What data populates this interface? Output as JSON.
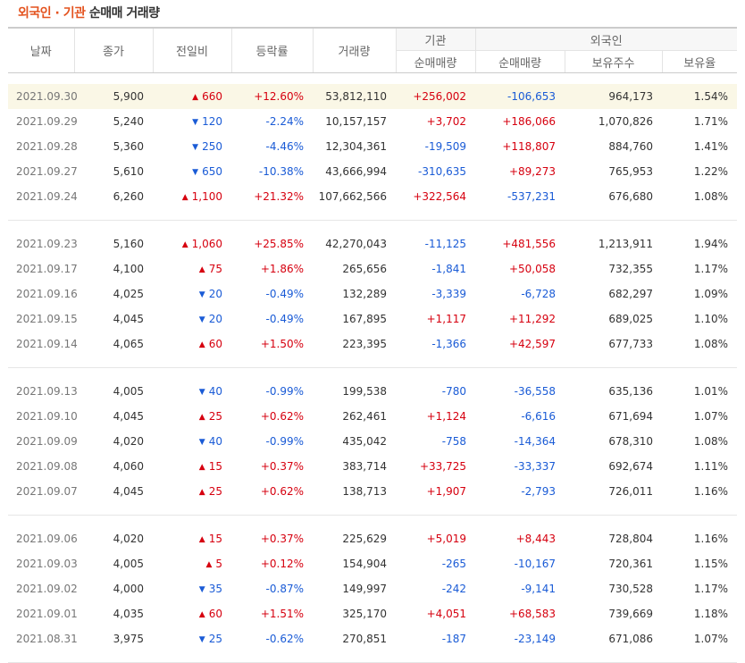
{
  "title": {
    "part1": "외국인 · 기관",
    "part2": "순매매 거래량"
  },
  "headers": {
    "date": "날짜",
    "close": "종가",
    "change": "전일비",
    "rate": "등락률",
    "volume": "거래량",
    "institution": "기관",
    "foreign": "외국인",
    "inst_net": "순매매량",
    "for_net": "순매매량",
    "holdings": "보유주수",
    "ratio": "보유율"
  },
  "groups": [
    [
      {
        "date": "2021.09.30",
        "close": "5,900",
        "dir": "up",
        "change": "660",
        "rate": "+12.60%",
        "volume": "53,812,110",
        "inst": "+256,002",
        "foreign": "-106,653",
        "holdings": "964,173",
        "ratio": "1.54%",
        "highlight": true
      },
      {
        "date": "2021.09.29",
        "close": "5,240",
        "dir": "down",
        "change": "120",
        "rate": "-2.24%",
        "volume": "10,157,157",
        "inst": "+3,702",
        "foreign": "+186,066",
        "holdings": "1,070,826",
        "ratio": "1.71%"
      },
      {
        "date": "2021.09.28",
        "close": "5,360",
        "dir": "down",
        "change": "250",
        "rate": "-4.46%",
        "volume": "12,304,361",
        "inst": "-19,509",
        "foreign": "+118,807",
        "holdings": "884,760",
        "ratio": "1.41%"
      },
      {
        "date": "2021.09.27",
        "close": "5,610",
        "dir": "down",
        "change": "650",
        "rate": "-10.38%",
        "volume": "43,666,994",
        "inst": "-310,635",
        "foreign": "+89,273",
        "holdings": "765,953",
        "ratio": "1.22%"
      },
      {
        "date": "2021.09.24",
        "close": "6,260",
        "dir": "up",
        "change": "1,100",
        "rate": "+21.32%",
        "volume": "107,662,566",
        "inst": "+322,564",
        "foreign": "-537,231",
        "holdings": "676,680",
        "ratio": "1.08%"
      }
    ],
    [
      {
        "date": "2021.09.23",
        "close": "5,160",
        "dir": "up",
        "change": "1,060",
        "rate": "+25.85%",
        "volume": "42,270,043",
        "inst": "-11,125",
        "foreign": "+481,556",
        "holdings": "1,213,911",
        "ratio": "1.94%"
      },
      {
        "date": "2021.09.17",
        "close": "4,100",
        "dir": "up",
        "change": "75",
        "rate": "+1.86%",
        "volume": "265,656",
        "inst": "-1,841",
        "foreign": "+50,058",
        "holdings": "732,355",
        "ratio": "1.17%"
      },
      {
        "date": "2021.09.16",
        "close": "4,025",
        "dir": "down",
        "change": "20",
        "rate": "-0.49%",
        "volume": "132,289",
        "inst": "-3,339",
        "foreign": "-6,728",
        "holdings": "682,297",
        "ratio": "1.09%"
      },
      {
        "date": "2021.09.15",
        "close": "4,045",
        "dir": "down",
        "change": "20",
        "rate": "-0.49%",
        "volume": "167,895",
        "inst": "+1,117",
        "foreign": "+11,292",
        "holdings": "689,025",
        "ratio": "1.10%"
      },
      {
        "date": "2021.09.14",
        "close": "4,065",
        "dir": "up",
        "change": "60",
        "rate": "+1.50%",
        "volume": "223,395",
        "inst": "-1,366",
        "foreign": "+42,597",
        "holdings": "677,733",
        "ratio": "1.08%"
      }
    ],
    [
      {
        "date": "2021.09.13",
        "close": "4,005",
        "dir": "down",
        "change": "40",
        "rate": "-0.99%",
        "volume": "199,538",
        "inst": "-780",
        "foreign": "-36,558",
        "holdings": "635,136",
        "ratio": "1.01%"
      },
      {
        "date": "2021.09.10",
        "close": "4,045",
        "dir": "up",
        "change": "25",
        "rate": "+0.62%",
        "volume": "262,461",
        "inst": "+1,124",
        "foreign": "-6,616",
        "holdings": "671,694",
        "ratio": "1.07%"
      },
      {
        "date": "2021.09.09",
        "close": "4,020",
        "dir": "down",
        "change": "40",
        "rate": "-0.99%",
        "volume": "435,042",
        "inst": "-758",
        "foreign": "-14,364",
        "holdings": "678,310",
        "ratio": "1.08%"
      },
      {
        "date": "2021.09.08",
        "close": "4,060",
        "dir": "up",
        "change": "15",
        "rate": "+0.37%",
        "volume": "383,714",
        "inst": "+33,725",
        "foreign": "-33,337",
        "holdings": "692,674",
        "ratio": "1.11%"
      },
      {
        "date": "2021.09.07",
        "close": "4,045",
        "dir": "up",
        "change": "25",
        "rate": "+0.62%",
        "volume": "138,713",
        "inst": "+1,907",
        "foreign": "-2,793",
        "holdings": "726,011",
        "ratio": "1.16%"
      }
    ],
    [
      {
        "date": "2021.09.06",
        "close": "4,020",
        "dir": "up",
        "change": "15",
        "rate": "+0.37%",
        "volume": "225,629",
        "inst": "+5,019",
        "foreign": "+8,443",
        "holdings": "728,804",
        "ratio": "1.16%"
      },
      {
        "date": "2021.09.03",
        "close": "4,005",
        "dir": "up",
        "change": "5",
        "rate": "+0.12%",
        "volume": "154,904",
        "inst": "-265",
        "foreign": "-10,167",
        "holdings": "720,361",
        "ratio": "1.15%"
      },
      {
        "date": "2021.09.02",
        "close": "4,000",
        "dir": "down",
        "change": "35",
        "rate": "-0.87%",
        "volume": "149,997",
        "inst": "-242",
        "foreign": "-9,141",
        "holdings": "730,528",
        "ratio": "1.17%"
      },
      {
        "date": "2021.09.01",
        "close": "4,035",
        "dir": "up",
        "change": "60",
        "rate": "+1.51%",
        "volume": "325,170",
        "inst": "+4,051",
        "foreign": "+68,583",
        "holdings": "739,669",
        "ratio": "1.18%"
      },
      {
        "date": "2021.08.31",
        "close": "3,975",
        "dir": "down",
        "change": "25",
        "rate": "-0.62%",
        "volume": "270,851",
        "inst": "-187",
        "foreign": "-23,149",
        "holdings": "671,086",
        "ratio": "1.07%"
      }
    ]
  ],
  "colors": {
    "up": "#d6000f",
    "down": "#1a5bd6",
    "title_accent": "#e4531f",
    "highlight": "#faf7e6"
  },
  "icons": {
    "up": "triangle-up-icon",
    "down": "triangle-down-icon"
  }
}
